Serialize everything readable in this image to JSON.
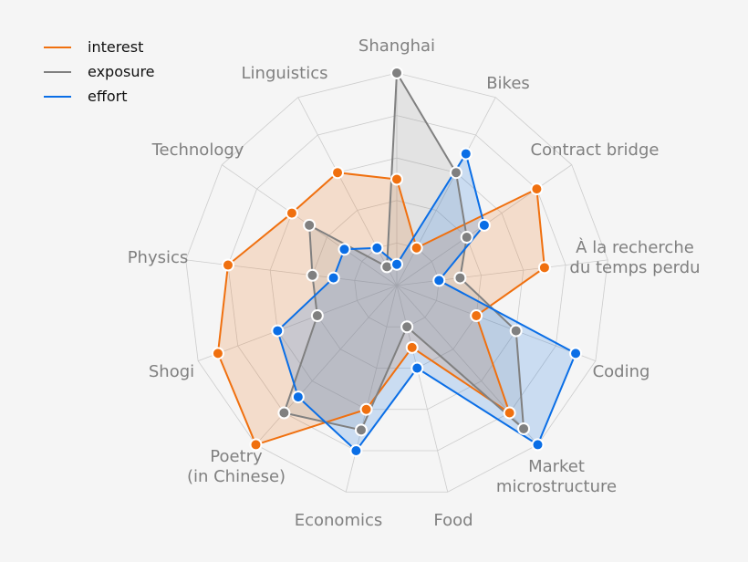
{
  "chart_data": {
    "type": "radar",
    "title": "",
    "axes": [
      "Shanghai",
      "Bikes",
      "Contract bridge",
      "À la recherche\ndu temps perdu",
      "Coding",
      "Market\nmicrostructure",
      "Food",
      "Economics",
      "Poetry\n(in Chinese)",
      "Shogi",
      "Physics",
      "Technology",
      "Linguistics"
    ],
    "rmax": 1.0,
    "rings": 5,
    "series": [
      {
        "name": "interest",
        "color": "#f0700f",
        "values": [
          0.5,
          0.2,
          0.8,
          0.7,
          0.4,
          0.8,
          0.3,
          0.6,
          1.0,
          0.9,
          0.8,
          0.6,
          0.6
        ]
      },
      {
        "name": "exposure",
        "color": "#808080",
        "values": [
          1.0,
          0.6,
          0.4,
          0.3,
          0.6,
          0.9,
          0.2,
          0.7,
          0.8,
          0.4,
          0.4,
          0.5,
          0.1
        ]
      },
      {
        "name": "effort",
        "color": "#0a6ee6",
        "values": [
          0.1,
          0.7,
          0.5,
          0.2,
          0.9,
          1.0,
          0.4,
          0.8,
          0.7,
          0.6,
          0.3,
          0.3,
          0.2
        ]
      }
    ],
    "legend_position": "upper left",
    "grid": true
  }
}
